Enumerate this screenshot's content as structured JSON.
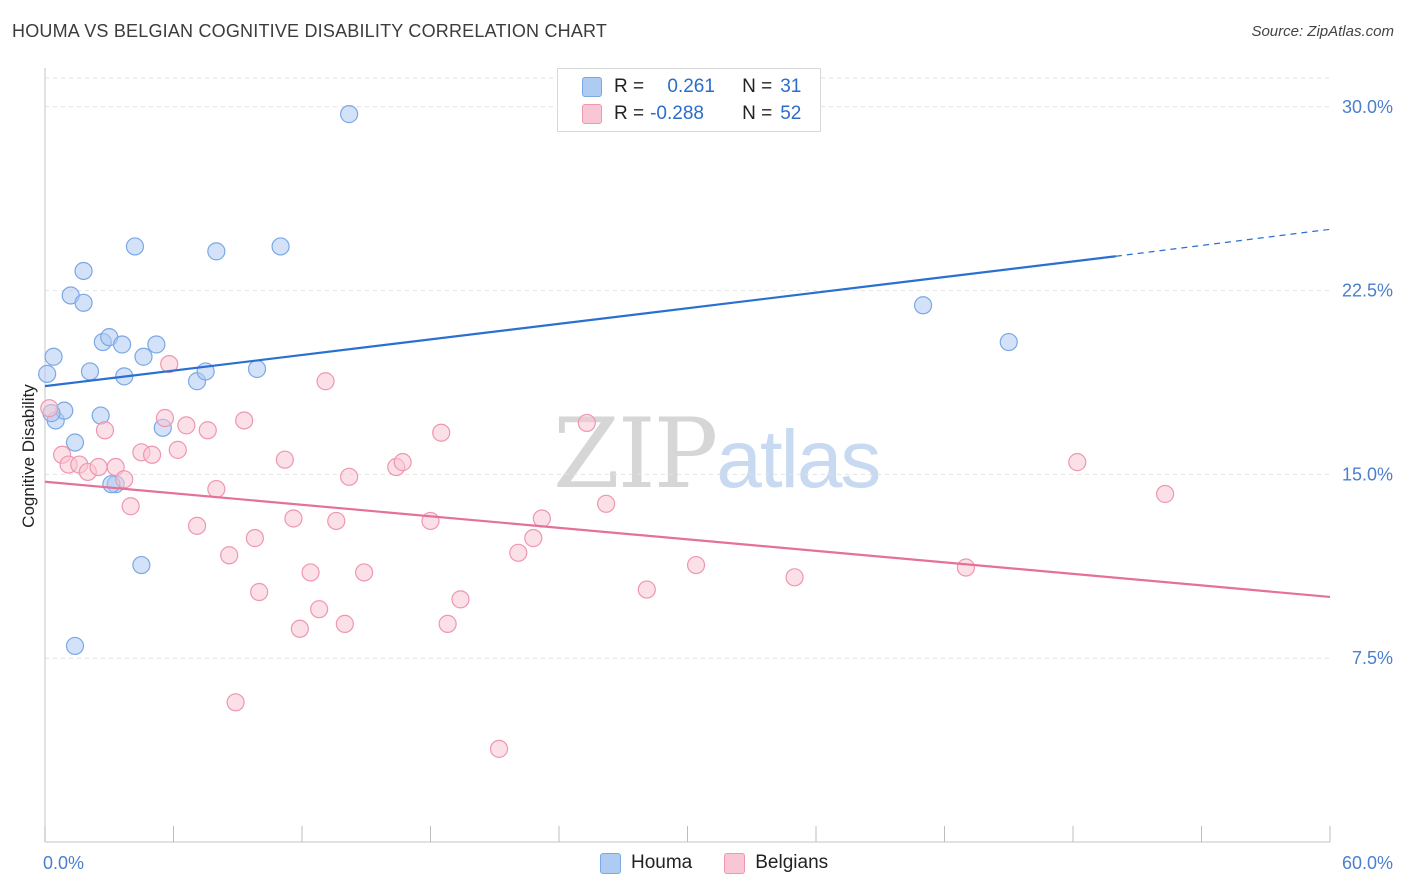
{
  "header": {
    "title": "HOUMA VS BELGIAN COGNITIVE DISABILITY CORRELATION CHART",
    "source": "Source: ZipAtlas.com"
  },
  "watermark": {
    "zip": "ZIP",
    "atlas": "atlas"
  },
  "legend": {
    "rows": [
      {
        "r_label": "R =",
        "r_value": " 0.261",
        "n_label": "N =",
        "n_value": "31",
        "color": "#aecbf2",
        "border": "#7aa8e6"
      },
      {
        "r_label": "R =",
        "r_value": "-0.288",
        "n_label": "N =",
        "n_value": "52",
        "color": "#f8c6d4",
        "border": "#ef96b0"
      }
    ]
  },
  "bottom_legend": [
    {
      "label": "Houma",
      "color": "#aecbf2",
      "border": "#7aa8e6"
    },
    {
      "label": "Belgians",
      "color": "#f8c6d4",
      "border": "#ef96b0"
    }
  ],
  "chart_data": {
    "type": "scatter",
    "title": "HOUMA VS BELGIAN COGNITIVE DISABILITY CORRELATION CHART",
    "xlabel": "",
    "ylabel": "Cognitive Disability",
    "xlim": [
      0,
      60
    ],
    "ylim": [
      0,
      31.5
    ],
    "x_tick_labels": [
      "0.0%",
      "60.0%"
    ],
    "y_ticks": [
      7.5,
      15.0,
      22.5,
      30.0
    ],
    "y_tick_labels": [
      "7.5%",
      "15.0%",
      "22.5%",
      "30.0%"
    ],
    "grid": "horizontal dashed",
    "series": [
      {
        "name": "Houma",
        "color": "#7aa8e6",
        "fill": "rgba(174,203,242,0.55)",
        "trend": {
          "x0": 0,
          "y0": 18.6,
          "x1": 50,
          "y1": 23.9,
          "dash_to_x": 60,
          "dash_to_y": 25.0,
          "color": "#2a70d0"
        },
        "points": [
          [
            0.1,
            19.1
          ],
          [
            0.4,
            19.8
          ],
          [
            0.5,
            17.2
          ],
          [
            0.9,
            17.6
          ],
          [
            1.2,
            22.3
          ],
          [
            1.4,
            16.3
          ],
          [
            1.8,
            23.3
          ],
          [
            1.8,
            22.0
          ],
          [
            2.1,
            19.2
          ],
          [
            2.6,
            17.4
          ],
          [
            2.7,
            20.4
          ],
          [
            3.0,
            20.6
          ],
          [
            3.3,
            14.6
          ],
          [
            3.6,
            20.3
          ],
          [
            3.7,
            19.0
          ],
          [
            4.2,
            24.3
          ],
          [
            4.5,
            11.3
          ],
          [
            4.6,
            19.8
          ],
          [
            5.2,
            20.3
          ],
          [
            5.5,
            16.9
          ],
          [
            7.1,
            18.8
          ],
          [
            7.5,
            19.2
          ],
          [
            8.0,
            24.1
          ],
          [
            9.9,
            19.3
          ],
          [
            11.0,
            24.3
          ],
          [
            14.2,
            29.7
          ],
          [
            41.0,
            21.9
          ],
          [
            45.0,
            20.4
          ],
          [
            1.4,
            8.0
          ],
          [
            0.3,
            17.5
          ],
          [
            3.1,
            14.6
          ]
        ]
      },
      {
        "name": "Belgians",
        "color": "#ef96b0",
        "fill": "rgba(248,198,212,0.55)",
        "trend": {
          "x0": 0,
          "y0": 14.7,
          "x1": 60,
          "y1": 10.0,
          "color": "#e5709a"
        },
        "points": [
          [
            0.2,
            17.7
          ],
          [
            0.8,
            15.8
          ],
          [
            1.1,
            15.4
          ],
          [
            1.6,
            15.4
          ],
          [
            2.0,
            15.1
          ],
          [
            2.5,
            15.3
          ],
          [
            2.8,
            16.8
          ],
          [
            3.3,
            15.3
          ],
          [
            3.7,
            14.8
          ],
          [
            4.0,
            13.7
          ],
          [
            4.5,
            15.9
          ],
          [
            5.0,
            15.8
          ],
          [
            5.6,
            17.3
          ],
          [
            5.8,
            19.5
          ],
          [
            6.2,
            16.0
          ],
          [
            6.6,
            17.0
          ],
          [
            7.1,
            12.9
          ],
          [
            7.6,
            16.8
          ],
          [
            8.0,
            14.4
          ],
          [
            8.6,
            11.7
          ],
          [
            8.9,
            5.7
          ],
          [
            9.3,
            17.2
          ],
          [
            9.8,
            12.4
          ],
          [
            10.0,
            10.2
          ],
          [
            11.2,
            15.6
          ],
          [
            11.6,
            13.2
          ],
          [
            11.9,
            8.7
          ],
          [
            12.4,
            11.0
          ],
          [
            12.8,
            9.5
          ],
          [
            13.1,
            18.8
          ],
          [
            13.6,
            13.1
          ],
          [
            14.0,
            8.9
          ],
          [
            14.2,
            14.9
          ],
          [
            14.9,
            11.0
          ],
          [
            16.4,
            15.3
          ],
          [
            16.7,
            15.5
          ],
          [
            18.0,
            13.1
          ],
          [
            18.5,
            16.7
          ],
          [
            18.8,
            8.9
          ],
          [
            19.4,
            9.9
          ],
          [
            21.2,
            3.8
          ],
          [
            22.1,
            11.8
          ],
          [
            22.8,
            12.4
          ],
          [
            23.2,
            13.2
          ],
          [
            25.3,
            17.1
          ],
          [
            26.2,
            13.8
          ],
          [
            28.1,
            10.3
          ],
          [
            30.4,
            11.3
          ],
          [
            35.0,
            10.8
          ],
          [
            43.0,
            11.2
          ],
          [
            48.2,
            15.5
          ],
          [
            52.3,
            14.2
          ]
        ]
      }
    ]
  }
}
